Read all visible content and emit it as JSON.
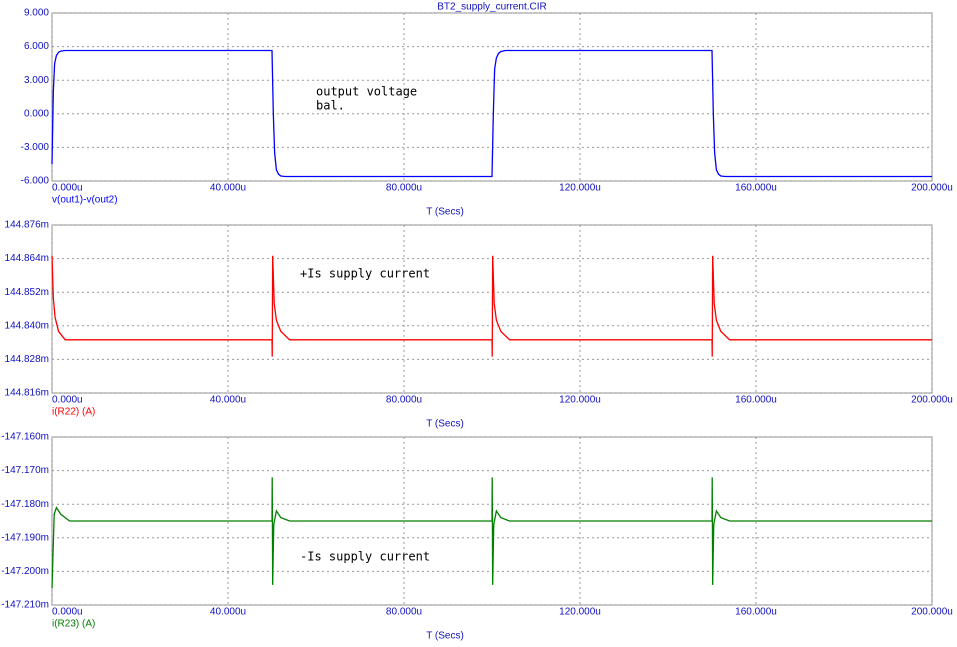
{
  "title": "BT2_supply_current.CIR",
  "chart_data": [
    {
      "type": "line",
      "xlabel": "T (Secs)",
      "x": [
        0,
        0.3,
        0.6,
        1,
        1.5,
        2,
        3,
        5,
        50,
        50.3,
        50.6,
        51,
        51.5,
        52,
        53,
        55,
        100,
        100.3,
        100.6,
        101,
        101.5,
        102,
        103,
        105,
        150,
        150.3,
        150.6,
        151,
        151.5,
        152,
        153,
        155,
        200
      ],
      "xlim": [
        0,
        200
      ],
      "xticks": [
        {
          "value": 0,
          "label": "0.000u"
        },
        {
          "value": 40,
          "label": "40.000u"
        },
        {
          "value": 80,
          "label": "80.000u"
        },
        {
          "value": 120,
          "label": "120.000u"
        },
        {
          "value": 160,
          "label": "160.000u"
        },
        {
          "value": 200,
          "label": "200.000u"
        }
      ],
      "ylim": [
        -6,
        9
      ],
      "yticks": [
        {
          "value": 9,
          "label": "9.000"
        },
        {
          "value": 6,
          "label": "6.000"
        },
        {
          "value": 3,
          "label": "3.000"
        },
        {
          "value": 0,
          "label": "0.000"
        },
        {
          "value": -3,
          "label": "-3.000"
        },
        {
          "value": -6,
          "label": "-6.000"
        }
      ],
      "grid": true,
      "series": [
        {
          "name": "v(out1)-v(out2)",
          "color": "#0000ff",
          "values": [
            -4.5,
            2,
            4.5,
            5.2,
            5.5,
            5.6,
            5.65,
            5.65,
            5.65,
            0,
            -3.5,
            -5,
            -5.4,
            -5.55,
            -5.6,
            -5.6,
            -5.6,
            0,
            4,
            5,
            5.4,
            5.55,
            5.65,
            5.65,
            5.65,
            0,
            -3.5,
            -5,
            -5.4,
            -5.55,
            -5.6,
            -5.6,
            -5.6
          ]
        }
      ],
      "annotations": [
        "output voltage",
        "bal."
      ]
    },
    {
      "type": "line",
      "xlabel": "T (Secs)",
      "x": [
        0,
        0.3,
        0.7,
        1.5,
        3,
        50,
        50.05,
        50.15,
        50.5,
        51,
        52,
        54,
        100,
        100.05,
        100.15,
        100.5,
        101,
        102,
        104,
        150,
        150.05,
        150.15,
        150.5,
        151,
        152,
        154,
        200
      ],
      "xlim": [
        0,
        200
      ],
      "xticks": [
        {
          "value": 0,
          "label": "0.000u"
        },
        {
          "value": 40,
          "label": "40.000u"
        },
        {
          "value": 80,
          "label": "80.000u"
        },
        {
          "value": 120,
          "label": "120.000u"
        },
        {
          "value": 160,
          "label": "160.000u"
        },
        {
          "value": 200,
          "label": "200.000u"
        }
      ],
      "ylim": [
        144.816,
        144.876
      ],
      "yticks": [
        {
          "value": 144.876,
          "label": "144.876m"
        },
        {
          "value": 144.864,
          "label": "144.864m"
        },
        {
          "value": 144.852,
          "label": "144.852m"
        },
        {
          "value": 144.84,
          "label": "144.840m"
        },
        {
          "value": 144.828,
          "label": "144.828m"
        },
        {
          "value": 144.816,
          "label": "144.816m"
        }
      ],
      "grid": true,
      "series": [
        {
          "name": "i(R22) (A)",
          "color": "#ff0000",
          "values": [
            144.865,
            144.85,
            144.843,
            144.838,
            144.835,
            144.835,
            144.829,
            144.865,
            144.848,
            144.842,
            144.838,
            144.835,
            144.835,
            144.829,
            144.865,
            144.848,
            144.842,
            144.838,
            144.835,
            144.835,
            144.829,
            144.865,
            144.848,
            144.842,
            144.838,
            144.835,
            144.835
          ]
        }
      ],
      "annotations": [
        "+Is supply current"
      ]
    },
    {
      "type": "line",
      "xlabel": "T (Secs)",
      "x": [
        0,
        0.5,
        1,
        2,
        4,
        50,
        50.05,
        50.15,
        50.4,
        51,
        52,
        54,
        100,
        100.05,
        100.15,
        100.4,
        101,
        102,
        104,
        150,
        150.05,
        150.15,
        150.4,
        151,
        152,
        154,
        200
      ],
      "xlim": [
        0,
        200
      ],
      "xticks": [
        {
          "value": 0,
          "label": "0.000u"
        },
        {
          "value": 40,
          "label": "40.000u"
        },
        {
          "value": 80,
          "label": "80.000u"
        },
        {
          "value": 120,
          "label": "120.000u"
        },
        {
          "value": 160,
          "label": "160.000u"
        },
        {
          "value": 200,
          "label": "200.000u"
        }
      ],
      "ylim": [
        -147.21,
        -147.16
      ],
      "yticks": [
        {
          "value": -147.16,
          "label": "-147.160m"
        },
        {
          "value": -147.17,
          "label": "-147.170m"
        },
        {
          "value": -147.18,
          "label": "-147.180m"
        },
        {
          "value": -147.19,
          "label": "-147.190m"
        },
        {
          "value": -147.2,
          "label": "-147.200m"
        },
        {
          "value": -147.21,
          "label": "-147.210m"
        }
      ],
      "grid": true,
      "series": [
        {
          "name": "i(R23) (A)",
          "color": "#008000",
          "values": [
            -147.205,
            -147.183,
            -147.181,
            -147.183,
            -147.185,
            -147.185,
            -147.172,
            -147.204,
            -147.186,
            -147.182,
            -147.184,
            -147.185,
            -147.185,
            -147.172,
            -147.204,
            -147.186,
            -147.182,
            -147.184,
            -147.185,
            -147.185,
            -147.172,
            -147.204,
            -147.186,
            -147.182,
            -147.184,
            -147.185,
            -147.185
          ]
        }
      ],
      "annotations": [
        "-Is supply current"
      ]
    }
  ]
}
